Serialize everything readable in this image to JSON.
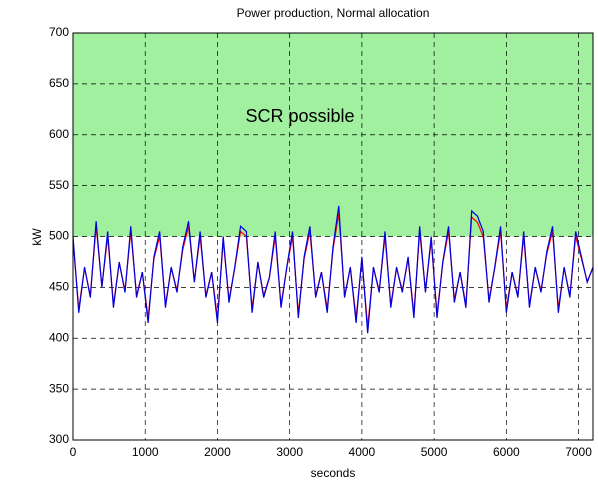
{
  "chart_data": {
    "type": "line",
    "title": "Power production, Normal allocation",
    "xlabel": "seconds",
    "ylabel": "kW",
    "shaded_region": {
      "from": 500,
      "to": 700,
      "color": "#a0f0a0",
      "label": "SCR possible"
    },
    "x": [
      0,
      80,
      160,
      240,
      320,
      400,
      480,
      560,
      640,
      720,
      800,
      880,
      960,
      1040,
      1120,
      1200,
      1280,
      1360,
      1440,
      1520,
      1600,
      1680,
      1760,
      1840,
      1920,
      2000,
      2080,
      2160,
      2240,
      2320,
      2400,
      2480,
      2560,
      2640,
      2720,
      2800,
      2880,
      2960,
      3040,
      3120,
      3200,
      3280,
      3360,
      3440,
      3520,
      3600,
      3680,
      3760,
      3840,
      3920,
      4000,
      4080,
      4160,
      4240,
      4320,
      4400,
      4480,
      4560,
      4640,
      4720,
      4800,
      4880,
      4960,
      5040,
      5120,
      5200,
      5280,
      5360,
      5440,
      5520,
      5600,
      5680,
      5760,
      5840,
      5920,
      6000,
      6080,
      6160,
      6240,
      6320,
      6400,
      6480,
      6560,
      6640,
      6720,
      6800,
      6880,
      6960,
      7040,
      7120,
      7200
    ],
    "series": [
      {
        "color": "#ff0000",
        "values": [
          496,
          429,
          469,
          442,
          510,
          451,
          500,
          433,
          474,
          447,
          505,
          442,
          465,
          420,
          478,
          500,
          433,
          469,
          447,
          487,
          510,
          456,
          500,
          442,
          465,
          420,
          496,
          438,
          469,
          505,
          500,
          429,
          474,
          442,
          460,
          500,
          433,
          469,
          500,
          424,
          478,
          505,
          442,
          465,
          429,
          487,
          523,
          442,
          469,
          420,
          478,
          411,
          469,
          447,
          500,
          433,
          469,
          447,
          478,
          424,
          505,
          447,
          496,
          424,
          474,
          505,
          438,
          465,
          433,
          519,
          514,
          500,
          438,
          469,
          505,
          429,
          465,
          442,
          500,
          433,
          469,
          447,
          483,
          505,
          429,
          469,
          442,
          500,
          478,
          456,
          469
        ]
      },
      {
        "color": "#0000dd",
        "values": [
          500,
          425,
          470,
          440,
          515,
          450,
          505,
          430,
          475,
          445,
          510,
          440,
          465,
          415,
          480,
          505,
          430,
          470,
          445,
          490,
          515,
          455,
          505,
          440,
          465,
          415,
          500,
          435,
          470,
          510,
          505,
          425,
          475,
          440,
          460,
          505,
          430,
          470,
          505,
          420,
          480,
          510,
          440,
          465,
          425,
          490,
          530,
          440,
          470,
          415,
          480,
          405,
          470,
          445,
          505,
          430,
          470,
          445,
          480,
          420,
          510,
          445,
          500,
          420,
          475,
          510,
          435,
          465,
          430,
          525,
          520,
          505,
          435,
          470,
          510,
          425,
          465,
          440,
          505,
          430,
          470,
          445,
          485,
          510,
          425,
          470,
          440,
          505,
          480,
          455,
          470
        ]
      }
    ],
    "xlim": [
      0,
      7200
    ],
    "ylim": [
      300,
      700
    ],
    "xticks": [
      0,
      1000,
      2000,
      3000,
      4000,
      5000,
      6000,
      7000
    ],
    "yticks": [
      300,
      350,
      400,
      450,
      500,
      550,
      600,
      650,
      700
    ],
    "grid": true
  }
}
